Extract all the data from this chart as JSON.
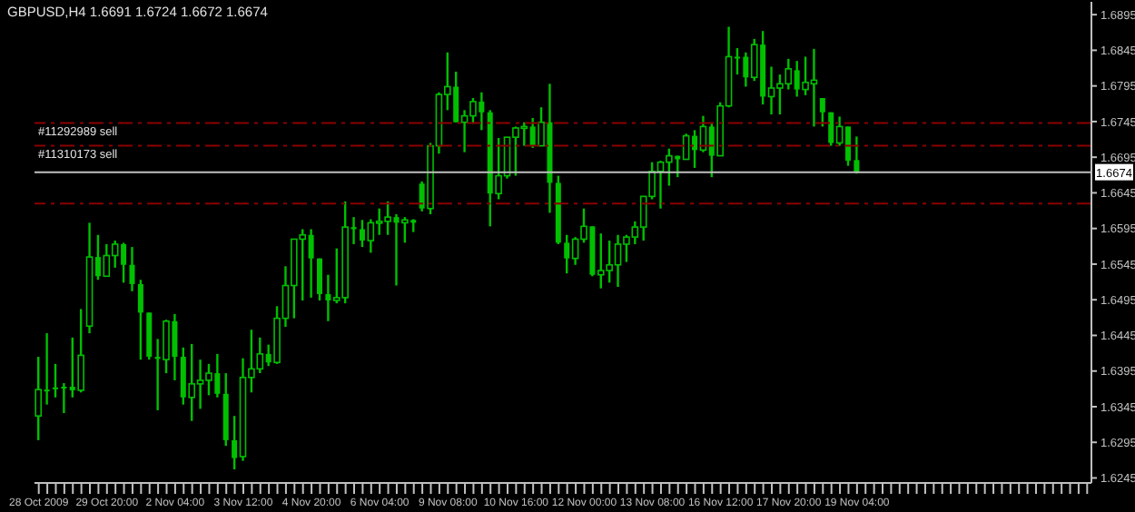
{
  "chart_data": {
    "type": "candlestick",
    "title": "GBPUSD,H4 1.6691 1.6724 1.6672 1.6674",
    "color": "#00c000",
    "categories": [
      "28 Oct 2009",
      null,
      null,
      null,
      null,
      null,
      null,
      null,
      "29 Oct 20:00",
      null,
      null,
      null,
      null,
      null,
      null,
      null,
      "2 Nov 04:00",
      null,
      null,
      null,
      null,
      null,
      null,
      null,
      "3 Nov 12:00",
      null,
      null,
      null,
      null,
      null,
      null,
      null,
      "4 Nov 20:00",
      null,
      null,
      null,
      null,
      null,
      null,
      null,
      "6 Nov 04:00",
      null,
      null,
      null,
      null,
      null,
      null,
      null,
      "9 Nov 08:00",
      null,
      null,
      null,
      null,
      null,
      null,
      null,
      "10 Nov 16:00",
      null,
      null,
      null,
      null,
      null,
      null,
      null,
      "12 Nov 00:00",
      null,
      null,
      null,
      null,
      null,
      null,
      null,
      "13 Nov 08:00",
      null,
      null,
      null,
      null,
      null,
      null,
      null,
      "16 Nov 12:00",
      null,
      null,
      null,
      null,
      null,
      null,
      null,
      "17 Nov 20:00",
      null,
      null,
      null,
      null,
      null,
      null,
      null,
      "19 Nov 04:00",
      null,
      null,
      null,
      null,
      null,
      null,
      null,
      null,
      null,
      null,
      null,
      null,
      null,
      null,
      null,
      null,
      null,
      null,
      null,
      null,
      null,
      null,
      null,
      null,
      null,
      null,
      null
    ],
    "ohlc": [
      [
        1.6332,
        1.6415,
        1.6298,
        1.6369
      ],
      [
        1.6369,
        1.6448,
        1.6348,
        1.6369
      ],
      [
        1.6372,
        1.6405,
        1.6358,
        1.6372
      ],
      [
        1.6373,
        1.6378,
        1.6336,
        1.6373
      ],
      [
        1.6373,
        1.6442,
        1.6358,
        1.6368
      ],
      [
        1.6368,
        1.6482,
        1.6365,
        1.6417
      ],
      [
        1.6458,
        1.6603,
        1.6448,
        1.6555
      ],
      [
        1.6555,
        1.6586,
        1.6523,
        1.6528
      ],
      [
        1.6528,
        1.6573,
        1.6528,
        1.6557
      ],
      [
        1.6557,
        1.6578,
        1.654,
        1.6573
      ],
      [
        1.6573,
        1.6575,
        1.6519,
        1.6544
      ],
      [
        1.6544,
        1.6569,
        1.6507,
        1.6517
      ],
      [
        1.6517,
        1.6523,
        1.6411,
        1.6477
      ],
      [
        1.6477,
        1.6477,
        1.6411,
        1.6415
      ],
      [
        1.6415,
        1.644,
        1.634,
        1.6412
      ],
      [
        1.6411,
        1.6467,
        1.6392,
        1.6465
      ],
      [
        1.6465,
        1.6475,
        1.6382,
        1.6415
      ],
      [
        1.6415,
        1.6428,
        1.6348,
        1.6358
      ],
      [
        1.6358,
        1.6433,
        1.6325,
        1.6377
      ],
      [
        1.6377,
        1.6411,
        1.6342,
        1.6382
      ],
      [
        1.6382,
        1.6405,
        1.6361,
        1.6392
      ],
      [
        1.6392,
        1.6419,
        1.6358,
        1.6363
      ],
      [
        1.6363,
        1.6392,
        1.629,
        1.6298
      ],
      [
        1.6298,
        1.6332,
        1.6257,
        1.6273
      ],
      [
        1.6275,
        1.6413,
        1.6269,
        1.6386
      ],
      [
        1.6386,
        1.6453,
        1.6365,
        1.6398
      ],
      [
        1.6398,
        1.6442,
        1.6392,
        1.6419
      ],
      [
        1.6419,
        1.6432,
        1.6402,
        1.6407
      ],
      [
        1.6407,
        1.6486,
        1.6405,
        1.6469
      ],
      [
        1.6469,
        1.6542,
        1.6457,
        1.6515
      ],
      [
        1.6515,
        1.658,
        1.6469,
        1.658
      ],
      [
        1.658,
        1.6594,
        1.6494,
        1.6586
      ],
      [
        1.6586,
        1.6594,
        1.6498,
        1.6553
      ],
      [
        1.6553,
        1.6553,
        1.6494,
        1.6503
      ],
      [
        1.6503,
        1.653,
        1.6465,
        1.6494
      ],
      [
        1.6494,
        1.6567,
        1.649,
        1.6498
      ],
      [
        1.6498,
        1.6633,
        1.649,
        1.6597
      ],
      [
        1.6597,
        1.6611,
        1.6573,
        1.6594
      ],
      [
        1.6594,
        1.6607,
        1.6569,
        1.6578
      ],
      [
        1.6578,
        1.6608,
        1.6561,
        1.6603
      ],
      [
        1.6603,
        1.6623,
        1.6586,
        1.6605
      ],
      [
        1.6605,
        1.6633,
        1.6586,
        1.6611
      ],
      [
        1.6611,
        1.6615,
        1.6515,
        1.6603
      ],
      [
        1.6603,
        1.6611,
        1.6575,
        1.6607
      ],
      [
        1.6607,
        1.6608,
        1.659,
        1.6603
      ],
      [
        1.6658,
        1.6661,
        1.6619,
        1.6623
      ],
      [
        1.6623,
        1.6715,
        1.6615,
        1.6711
      ],
      [
        1.6711,
        1.6786,
        1.67,
        1.6783
      ],
      [
        1.6783,
        1.6842,
        1.6761,
        1.6794
      ],
      [
        1.6794,
        1.6815,
        1.6744,
        1.6744
      ],
      [
        1.6744,
        1.6761,
        1.6702,
        1.6753
      ],
      [
        1.6753,
        1.6778,
        1.6742,
        1.6773
      ],
      [
        1.6773,
        1.6786,
        1.6733,
        1.6758
      ],
      [
        1.6758,
        1.6761,
        1.6598,
        1.6644
      ],
      [
        1.6644,
        1.6722,
        1.6636,
        1.6669
      ],
      [
        1.6669,
        1.6723,
        1.6665,
        1.6723
      ],
      [
        1.6723,
        1.6738,
        1.6669,
        1.6736
      ],
      [
        1.6736,
        1.6744,
        1.6711,
        1.6738
      ],
      [
        1.6738,
        1.675,
        1.6708,
        1.6711
      ],
      [
        1.6711,
        1.6765,
        1.6711,
        1.6744
      ],
      [
        1.6744,
        1.6798,
        1.6617,
        1.6659
      ],
      [
        1.6659,
        1.6669,
        1.6573,
        1.6575
      ],
      [
        1.6575,
        1.6586,
        1.6532,
        1.6553
      ],
      [
        1.6553,
        1.6583,
        1.6544,
        1.658
      ],
      [
        1.658,
        1.6623,
        1.6575,
        1.6598
      ],
      [
        1.6598,
        1.6598,
        1.6528,
        1.653
      ],
      [
        1.653,
        1.6588,
        1.6511,
        1.6536
      ],
      [
        1.6536,
        1.6578,
        1.6519,
        1.6544
      ],
      [
        1.6544,
        1.6586,
        1.6513,
        1.6573
      ],
      [
        1.6573,
        1.6586,
        1.6548,
        1.6583
      ],
      [
        1.6583,
        1.6605,
        1.6573,
        1.6597
      ],
      [
        1.6597,
        1.664,
        1.6578,
        1.664
      ],
      [
        1.664,
        1.6688,
        1.6636,
        1.6675
      ],
      [
        1.6675,
        1.669,
        1.6623,
        1.6688
      ],
      [
        1.6688,
        1.6707,
        1.6655,
        1.6697
      ],
      [
        1.6697,
        1.6697,
        1.6667,
        1.6692
      ],
      [
        1.6692,
        1.6728,
        1.6692,
        1.6725
      ],
      [
        1.6725,
        1.6733,
        1.668,
        1.6705
      ],
      [
        1.6705,
        1.6753,
        1.6702,
        1.6738
      ],
      [
        1.6738,
        1.6742,
        1.6667,
        1.6697
      ],
      [
        1.6697,
        1.6772,
        1.6697,
        1.6767
      ],
      [
        1.6767,
        1.6878,
        1.6765,
        1.6836
      ],
      [
        1.6836,
        1.6848,
        1.6811,
        1.6836
      ],
      [
        1.6836,
        1.6842,
        1.6794,
        1.6807
      ],
      [
        1.6807,
        1.6861,
        1.6802,
        1.6853
      ],
      [
        1.6853,
        1.6872,
        1.6769,
        1.678
      ],
      [
        1.678,
        1.6822,
        1.6755,
        1.6792
      ],
      [
        1.6792,
        1.6811,
        1.6755,
        1.6798
      ],
      [
        1.6798,
        1.6833,
        1.679,
        1.6819
      ],
      [
        1.6817,
        1.683,
        1.678,
        1.679
      ],
      [
        1.679,
        1.6836,
        1.6782,
        1.68
      ],
      [
        1.6798,
        1.6847,
        1.6738,
        1.6803
      ],
      [
        1.6778,
        1.6778,
        1.6738,
        1.6758
      ],
      [
        1.6758,
        1.6758,
        1.6711,
        1.6715
      ],
      [
        1.6715,
        1.6752,
        1.6711,
        1.6738
      ],
      [
        1.6738,
        1.6738,
        1.6683,
        1.669
      ],
      [
        1.6691,
        1.6724,
        1.6672,
        1.6674
      ],
      null,
      null,
      null,
      null,
      null,
      null,
      null,
      null,
      null,
      null,
      null,
      null,
      null,
      null,
      null,
      null,
      null,
      null,
      null,
      null,
      null,
      null,
      null,
      null,
      null,
      null,
      null
    ],
    "ylim": [
      1.6238,
      1.6913
    ],
    "yticks": [
      1.6245,
      1.6295,
      1.6345,
      1.6395,
      1.6445,
      1.6495,
      1.6545,
      1.6595,
      1.6645,
      1.6695,
      1.6745,
      1.6795,
      1.6845,
      1.6895
    ],
    "ref_lines": [
      {
        "axis": "y",
        "value": 1.6743,
        "label": "#11292989 sell",
        "color": "#8b0000",
        "line_style": "dashed"
      },
      {
        "axis": "y",
        "value": 1.6711,
        "label": "#11310173 sell",
        "color": "#8b0000",
        "line_style": "dashed"
      },
      {
        "axis": "y",
        "value": 1.663,
        "color": "#8b0000",
        "line_style": "dashed"
      },
      {
        "axis": "y",
        "value": 1.6674,
        "label": "1.6674",
        "color": "#c0c0c0",
        "line_style": "solid"
      }
    ]
  }
}
